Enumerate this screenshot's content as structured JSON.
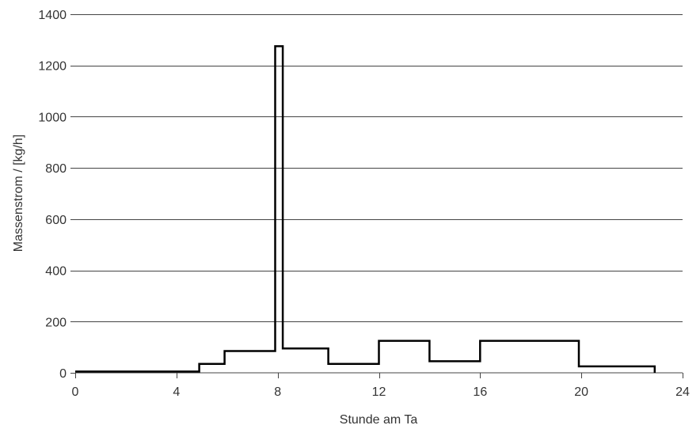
{
  "chart_data": {
    "type": "line",
    "title": "",
    "xlabel": "Stunde am Ta",
    "ylabel": "Massenstrom / [kg/h]",
    "xlim": [
      0,
      24
    ],
    "ylim": [
      0,
      1400
    ],
    "x_ticks": [
      0,
      4,
      8,
      12,
      16,
      20,
      24
    ],
    "y_ticks": [
      0,
      200,
      400,
      600,
      800,
      1000,
      1200,
      1400
    ],
    "grid": "horizontal",
    "legend": "none",
    "line_color": "#000000",
    "series": [
      {
        "x": [
          0,
          4.9,
          4.9,
          5.9,
          5.9,
          7.9,
          7.9,
          8.2,
          8.2,
          10,
          10,
          12,
          12,
          14,
          14,
          16,
          16,
          19.9,
          19.9,
          22.9,
          22.9
        ],
        "y": [
          5,
          5,
          35,
          35,
          85,
          85,
          1275,
          1275,
          95,
          95,
          35,
          35,
          125,
          125,
          45,
          45,
          125,
          125,
          25,
          25,
          0
        ]
      }
    ]
  }
}
